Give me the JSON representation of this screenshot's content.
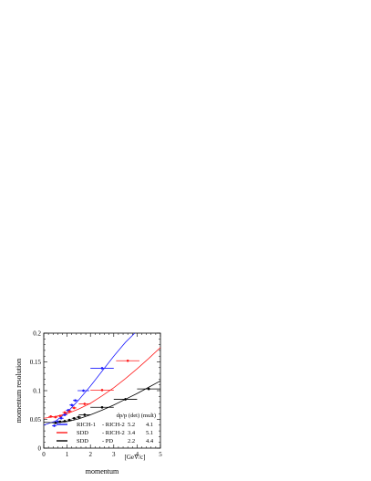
{
  "chart_data": {
    "type": "scatter",
    "xlabel": "momentum",
    "ylabel": "momentum resolution",
    "unit_label": "[GeV/c]",
    "xlim": [
      0,
      5
    ],
    "ylim": [
      0,
      0.2
    ],
    "xticks": [
      0,
      1,
      2,
      3,
      4,
      5
    ],
    "yticks": [
      0,
      0.05,
      0.1,
      0.15,
      0.2
    ],
    "ytick_labels": [
      "0",
      "0.05",
      "0.1",
      "0.15",
      "0.2"
    ],
    "legend": {
      "placement": "bottom-right",
      "header": "dp/p (det)  (mult)"
    },
    "series": [
      {
        "name": "RICH-1 - RICH-2",
        "label_a": "RICH-1",
        "label_b": "- RICH-2",
        "det": "5.2",
        "mult": "4.1",
        "color": "#1a1aff",
        "points": [
          {
            "x": 0.45,
            "xerr": 0.1,
            "y": 0.039,
            "yerr": 0.002
          },
          {
            "x": 0.6,
            "xerr": 0.1,
            "y": 0.046,
            "yerr": 0.002
          },
          {
            "x": 0.75,
            "xerr": 0.1,
            "y": 0.052,
            "yerr": 0.002
          },
          {
            "x": 0.9,
            "xerr": 0.1,
            "y": 0.058,
            "yerr": 0.002
          },
          {
            "x": 1.05,
            "xerr": 0.1,
            "y": 0.066,
            "yerr": 0.002
          },
          {
            "x": 1.2,
            "xerr": 0.1,
            "y": 0.075,
            "yerr": 0.002
          },
          {
            "x": 1.35,
            "xerr": 0.1,
            "y": 0.083,
            "yerr": 0.002
          },
          {
            "x": 1.7,
            "xerr": 0.25,
            "y": 0.1,
            "yerr": 0.002
          },
          {
            "x": 2.5,
            "xerr": 0.5,
            "y": 0.139,
            "yerr": 0.002
          }
        ],
        "fit": {
          "x": [
            0,
            0.5,
            1,
            1.5,
            2,
            2.5,
            3,
            3.5,
            3.9
          ],
          "y": [
            0.04,
            0.047,
            0.062,
            0.084,
            0.108,
            0.134,
            0.16,
            0.184,
            0.2
          ]
        }
      },
      {
        "name": "SDD - RICH-2",
        "label_a": "SDD",
        "label_b": "- RICH-2",
        "det": "3.4",
        "mult": "5.1",
        "color": "#ff1a1a",
        "points": [
          {
            "x": 0.3,
            "xerr": 0.1,
            "y": 0.055,
            "yerr": 0.002
          },
          {
            "x": 0.5,
            "xerr": 0.1,
            "y": 0.054,
            "yerr": 0.002
          },
          {
            "x": 0.7,
            "xerr": 0.1,
            "y": 0.056,
            "yerr": 0.002
          },
          {
            "x": 0.9,
            "xerr": 0.1,
            "y": 0.062,
            "yerr": 0.002
          },
          {
            "x": 1.1,
            "xerr": 0.1,
            "y": 0.064,
            "yerr": 0.002
          },
          {
            "x": 1.3,
            "xerr": 0.1,
            "y": 0.07,
            "yerr": 0.002
          },
          {
            "x": 1.75,
            "xerr": 0.25,
            "y": 0.077,
            "yerr": 0.002
          },
          {
            "x": 2.5,
            "xerr": 0.5,
            "y": 0.101,
            "yerr": 0.002
          },
          {
            "x": 3.6,
            "xerr": 0.5,
            "y": 0.152,
            "yerr": 0.002
          }
        ],
        "fit": {
          "x": [
            0,
            0.5,
            1,
            1.5,
            2,
            2.5,
            3,
            3.5,
            4,
            4.5,
            5
          ],
          "y": [
            0.052,
            0.055,
            0.06,
            0.068,
            0.078,
            0.091,
            0.105,
            0.121,
            0.138,
            0.156,
            0.175
          ]
        }
      },
      {
        "name": "SDD - PD",
        "label_a": "SDD",
        "label_b": "- PD",
        "det": "2.2",
        "mult": "4.4",
        "color": "#000000",
        "points": [
          {
            "x": 0.5,
            "xerr": 0.1,
            "y": 0.044,
            "yerr": 0.002
          },
          {
            "x": 0.7,
            "xerr": 0.1,
            "y": 0.046,
            "yerr": 0.002
          },
          {
            "x": 0.9,
            "xerr": 0.1,
            "y": 0.047,
            "yerr": 0.002
          },
          {
            "x": 1.1,
            "xerr": 0.1,
            "y": 0.049,
            "yerr": 0.002
          },
          {
            "x": 1.3,
            "xerr": 0.1,
            "y": 0.052,
            "yerr": 0.002
          },
          {
            "x": 1.5,
            "xerr": 0.1,
            "y": 0.054,
            "yerr": 0.002
          },
          {
            "x": 1.75,
            "xerr": 0.25,
            "y": 0.058,
            "yerr": 0.002
          },
          {
            "x": 2.5,
            "xerr": 0.5,
            "y": 0.071,
            "yerr": 0.002
          },
          {
            "x": 3.5,
            "xerr": 0.5,
            "y": 0.085,
            "yerr": 0.002
          },
          {
            "x": 4.5,
            "xerr": 0.5,
            "y": 0.103,
            "yerr": 0.002
          }
        ],
        "fit": {
          "x": [
            0,
            0.5,
            1,
            1.5,
            2,
            2.5,
            3,
            3.5,
            4,
            4.5,
            5
          ],
          "y": [
            0.045,
            0.044,
            0.046,
            0.051,
            0.058,
            0.066,
            0.075,
            0.085,
            0.095,
            0.106,
            0.117
          ]
        }
      }
    ]
  }
}
